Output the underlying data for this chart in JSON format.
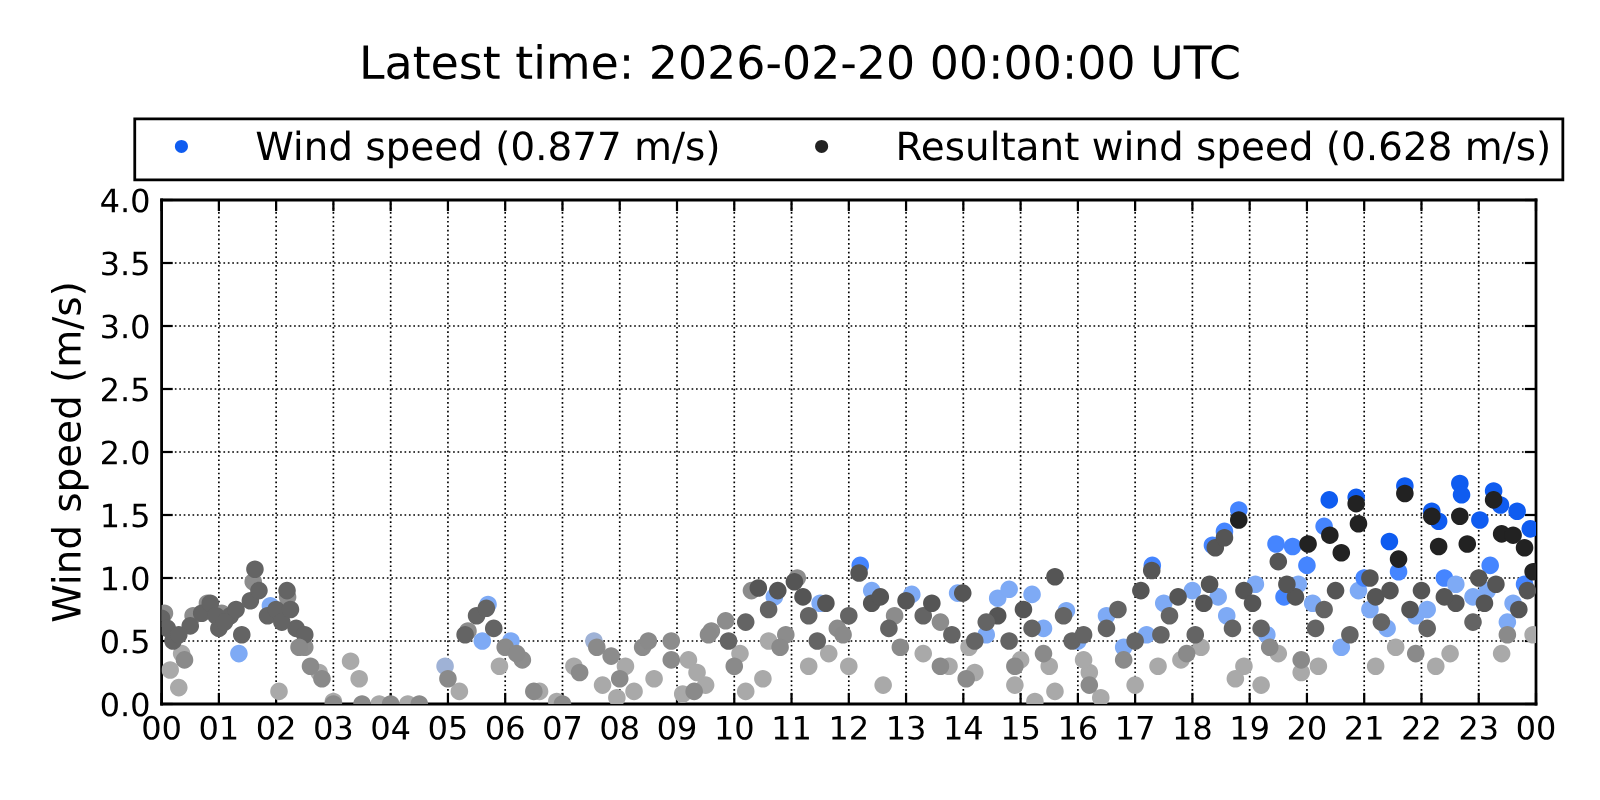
{
  "chart_data": {
    "type": "scatter",
    "title": "Latest time: 2026-02-20 00:00:00 UTC",
    "ylabel": "Wind speed (m/s)",
    "xlim": [
      0,
      24
    ],
    "xticks": [
      {
        "value": 0,
        "label": "00"
      },
      {
        "value": 1,
        "label": "01"
      },
      {
        "value": 2,
        "label": "02"
      },
      {
        "value": 3,
        "label": "03"
      },
      {
        "value": 4,
        "label": "04"
      },
      {
        "value": 5,
        "label": "05"
      },
      {
        "value": 6,
        "label": "06"
      },
      {
        "value": 7,
        "label": "07"
      },
      {
        "value": 8,
        "label": "08"
      },
      {
        "value": 9,
        "label": "09"
      },
      {
        "value": 10,
        "label": "10"
      },
      {
        "value": 11,
        "label": "11"
      },
      {
        "value": 12,
        "label": "12"
      },
      {
        "value": 13,
        "label": "13"
      },
      {
        "value": 14,
        "label": "14"
      },
      {
        "value": 15,
        "label": "15"
      },
      {
        "value": 16,
        "label": "16"
      },
      {
        "value": 17,
        "label": "17"
      },
      {
        "value": 18,
        "label": "18"
      },
      {
        "value": 19,
        "label": "19"
      },
      {
        "value": 20,
        "label": "20"
      },
      {
        "value": 21,
        "label": "21"
      },
      {
        "value": 22,
        "label": "22"
      },
      {
        "value": 23,
        "label": "23"
      },
      {
        "value": 24,
        "label": "00"
      }
    ],
    "ylim": [
      0,
      4
    ],
    "yticks": [
      {
        "value": 0,
        "label": "0.0"
      },
      {
        "value": 0.5,
        "label": "0.5"
      },
      {
        "value": 1,
        "label": "1.0"
      },
      {
        "value": 1.5,
        "label": "1.5"
      },
      {
        "value": 2,
        "label": "2.0"
      },
      {
        "value": 2.5,
        "label": "2.5"
      },
      {
        "value": 3,
        "label": "3.0"
      },
      {
        "value": 3.5,
        "label": "3.5"
      },
      {
        "value": 4,
        "label": "4.0"
      }
    ],
    "grid": true,
    "legend": "top",
    "marker": "circle",
    "series": [
      {
        "x": [
          0.05,
          0.15,
          0.3,
          0.35,
          0.55,
          0.8,
          1.05,
          1.35,
          1.6,
          1.9,
          2.05,
          2.2,
          2.5,
          2.75,
          3.0,
          3.3,
          3.45,
          3.8,
          4.3,
          4.95,
          5.2,
          5.35,
          5.6,
          5.7,
          5.9,
          6.1,
          6.3,
          6.6,
          6.9,
          7.2,
          7.55,
          7.7,
          7.85,
          8.1,
          8.4,
          8.6,
          8.9,
          9.1,
          9.2,
          9.5,
          9.6,
          9.85,
          10.1,
          10.3,
          10.5,
          10.7,
          10.9,
          11.1,
          11.3,
          11.5,
          11.8,
          12.2,
          12.4,
          12.6,
          12.8,
          13.1,
          13.3,
          13.6,
          13.9,
          14.2,
          14.4,
          14.6,
          14.8,
          15.0,
          15.2,
          15.25,
          15.4,
          15.6,
          15.8,
          16.0,
          16.2,
          16.4,
          16.5,
          16.8,
          17.0,
          17.2,
          17.3,
          17.5,
          17.8,
          18.0,
          18.35,
          18.56,
          18.6,
          18.81,
          18.9,
          19.1,
          19.2,
          19.3,
          19.46,
          19.6,
          19.75,
          19.9,
          20.0,
          20.1,
          20.3,
          20.6,
          20.9,
          21.0,
          21.2,
          21.4,
          21.6,
          21.9,
          22.1,
          22.4,
          22.5,
          22.9,
          23.2,
          23.5,
          23.6,
          23.8,
          23.95,
          7.95,
          8.25,
          9.35,
          10.2,
          10.6,
          11.65,
          12.0,
          13.75,
          14.1,
          14.9,
          15.5,
          16.1,
          17.4,
          18.15,
          18.75,
          19.5,
          20.2,
          21.55,
          22.25,
          23.4,
          18.45,
          19.85,
          21.1,
          22.6,
          23.15
        ],
        "values": [
          0.72,
          0.27,
          0.13,
          0.4,
          0.7,
          0.8,
          0.72,
          0.4,
          0.97,
          0.78,
          0.1,
          0.85,
          0.45,
          0.25,
          0.02,
          0.34,
          0.2,
          0.0,
          0.0,
          0.3,
          0.1,
          0.58,
          0.5,
          0.79,
          0.3,
          0.5,
          0.35,
          0.1,
          0.02,
          0.3,
          0.5,
          0.15,
          0.38,
          0.3,
          0.45,
          0.2,
          0.5,
          0.08,
          0.35,
          0.15,
          0.58,
          0.66,
          0.4,
          0.9,
          0.2,
          0.85,
          0.55,
          1.0,
          0.3,
          0.8,
          0.6,
          1.1,
          0.9,
          0.15,
          0.7,
          0.87,
          0.4,
          0.65,
          0.88,
          0.25,
          0.55,
          0.84,
          0.91,
          0.35,
          0.87,
          0.02,
          0.6,
          0.1,
          0.74,
          0.5,
          0.25,
          0.05,
          0.7,
          0.45,
          0.15,
          0.55,
          1.1,
          0.8,
          0.35,
          0.9,
          1.26,
          1.37,
          0.7,
          1.54,
          0.3,
          0.95,
          0.15,
          0.55,
          1.27,
          0.85,
          1.25,
          0.25,
          1.1,
          0.8,
          1.41,
          0.45,
          0.9,
          1.0,
          0.3,
          0.6,
          1.05,
          0.7,
          0.75,
          1.0,
          0.4,
          0.85,
          1.1,
          0.65,
          0.8,
          0.95,
          0.55,
          0.05,
          0.1,
          0.25,
          0.1,
          0.5,
          0.4,
          0.3,
          0.3,
          0.45,
          0.15,
          0.3,
          0.35,
          0.3,
          0.45,
          0.2,
          0.4,
          0.3,
          0.45,
          0.3,
          0.4,
          0.85,
          0.95,
          0.75,
          0.95,
          0.9
        ],
        "colors": [
          "#8c8c8c",
          "#a9a9a9",
          "#a9a9a9",
          "#a9a9a9",
          "#8c8c8c",
          "#8c8c8c",
          "#8c8c8c",
          "#7eaaf5",
          "#8c8c8c",
          "#7eaaf5",
          "#a9a9a9",
          "#8c8c8c",
          "#8c8c8c",
          "#a9a9a9",
          "#a9a9a9",
          "#a9a9a9",
          "#a9a9a9",
          "#a9a9a9",
          "#a9a9a9",
          "#9fb2d6",
          "#a9a9a9",
          "#8c8c8c",
          "#7eaaf5",
          "#7eaaf5",
          "#a9a9a9",
          "#7eaaf5",
          "#8c8c8c",
          "#a9a9a9",
          "#a9a9a9",
          "#a9a9a9",
          "#9fb2d6",
          "#a9a9a9",
          "#8c8c8c",
          "#a9a9a9",
          "#8c8c8c",
          "#a9a9a9",
          "#8c8c8c",
          "#a9a9a9",
          "#a9a9a9",
          "#a9a9a9",
          "#8c8c8c",
          "#8c8c8c",
          "#a9a9a9",
          "#8c8c8c",
          "#a9a9a9",
          "#7eaaf5",
          "#8c8c8c",
          "#8c8c8c",
          "#a9a9a9",
          "#7eaaf5",
          "#8c8c8c",
          "#4585ff",
          "#7eaaf5",
          "#a9a9a9",
          "#8c8c8c",
          "#7eaaf5",
          "#a9a9a9",
          "#8c8c8c",
          "#7eaaf5",
          "#a9a9a9",
          "#7eaaf5",
          "#7eaaf5",
          "#7eaaf5",
          "#a9a9a9",
          "#7eaaf5",
          "#a9a9a9",
          "#7eaaf5",
          "#a9a9a9",
          "#7eaaf5",
          "#7eaaf5",
          "#a9a9a9",
          "#a9a9a9",
          "#7eaaf5",
          "#7eaaf5",
          "#a9a9a9",
          "#7eaaf5",
          "#4585ff",
          "#7eaaf5",
          "#a9a9a9",
          "#7eaaf5",
          "#4585ff",
          "#4585ff",
          "#7eaaf5",
          "#4585ff",
          "#a9a9a9",
          "#7eaaf5",
          "#a9a9a9",
          "#7eaaf5",
          "#4585ff",
          "#4585ff",
          "#4585ff",
          "#a9a9a9",
          "#4585ff",
          "#7eaaf5",
          "#4585ff",
          "#7eaaf5",
          "#7eaaf5",
          "#4585ff",
          "#a9a9a9",
          "#7eaaf5",
          "#4585ff",
          "#7eaaf5",
          "#7eaaf5",
          "#4585ff",
          "#a9a9a9",
          "#7eaaf5",
          "#4585ff",
          "#7eaaf5",
          "#7eaaf5",
          "#4585ff",
          "#a9a9a9",
          "#a9a9a9",
          "#a9a9a9",
          "#a9a9a9",
          "#a9a9a9",
          "#a9a9a9",
          "#a9a9a9",
          "#a9a9a9",
          "#a9a9a9",
          "#a9a9a9",
          "#a9a9a9",
          "#a9a9a9",
          "#a9a9a9",
          "#a9a9a9",
          "#a9a9a9",
          "#a9a9a9",
          "#a9a9a9",
          "#a9a9a9",
          "#a9a9a9",
          "#a9a9a9",
          "#a9a9a9",
          "#7eaaf5",
          "#7eaaf5",
          "#7eaaf5",
          "#7eaaf5",
          "#7eaaf5"
        ]
      },
      {
        "name": "Wind speed (0.877 m/s)",
        "color": "#0f5cf0",
        "x": [
          20.39,
          20.86,
          21.44,
          21.71,
          22.18,
          22.3,
          22.67,
          22.7,
          23.02,
          23.26,
          23.38,
          23.67,
          23.9
        ],
        "values": [
          1.62,
          1.64,
          1.29,
          1.73,
          1.53,
          1.45,
          1.75,
          1.66,
          1.46,
          1.69,
          1.58,
          1.53,
          1.39
        ]
      },
      {
        "x": [
          0.0,
          0.2,
          0.4,
          0.5,
          0.7,
          0.85,
          1.0,
          1.2,
          1.4,
          1.55,
          1.63,
          1.7,
          1.85,
          2.0,
          2.19,
          2.35,
          2.5,
          2.6,
          2.8,
          3.0,
          3.5,
          4.0,
          4.5,
          5.0,
          5.3,
          5.5,
          5.67,
          5.8,
          6.0,
          6.2,
          6.5,
          7.0,
          7.3,
          7.6,
          8.0,
          8.5,
          8.9,
          9.3,
          9.55,
          9.9,
          10.2,
          10.42,
          10.6,
          10.76,
          11.05,
          11.3,
          11.6,
          11.9,
          12.18,
          12.4,
          12.7,
          13.0,
          13.3,
          13.6,
          13.99,
          14.2,
          14.6,
          14.9,
          15.2,
          15.6,
          15.9,
          16.2,
          16.5,
          16.8,
          17.1,
          17.29,
          17.6,
          17.9,
          18.2,
          18.4,
          18.56,
          18.9,
          19.2,
          19.5,
          19.8,
          19.9,
          20.3,
          21.1,
          21.3,
          21.9,
          22.0,
          22.6,
          23.0,
          23.5,
          10.0,
          10.8,
          11.2,
          11.45,
          12.0,
          12.55,
          12.9,
          13.45,
          13.8,
          14.05,
          14.4,
          14.8,
          15.05,
          15.4,
          15.75,
          16.1,
          16.7,
          17.0,
          17.45,
          17.75,
          18.05,
          18.3,
          18.7,
          19.05,
          19.35,
          19.65,
          20.15,
          20.5,
          20.75,
          21.2,
          21.45,
          21.8,
          22.1,
          22.4,
          22.9,
          23.1,
          23.3,
          23.7,
          23.85,
          0.1,
          0.3,
          0.95,
          1.1,
          1.3,
          2.1,
          2.25,
          2.4
        ],
        "values": [
          0.68,
          0.5,
          0.35,
          0.62,
          0.72,
          0.8,
          0.6,
          0.7,
          0.55,
          0.82,
          1.07,
          0.9,
          0.7,
          0.75,
          0.9,
          0.6,
          0.55,
          0.3,
          0.2,
          0.0,
          0.0,
          0.0,
          0.0,
          0.2,
          0.55,
          0.7,
          0.76,
          0.6,
          0.45,
          0.4,
          0.1,
          0.0,
          0.25,
          0.45,
          0.2,
          0.5,
          0.35,
          0.1,
          0.55,
          0.5,
          0.65,
          0.92,
          0.75,
          0.9,
          0.97,
          0.7,
          0.8,
          0.55,
          1.04,
          0.8,
          0.6,
          0.82,
          0.7,
          0.3,
          0.88,
          0.5,
          0.7,
          0.3,
          0.6,
          1.01,
          0.5,
          0.15,
          0.6,
          0.35,
          0.9,
          1.06,
          0.7,
          0.4,
          0.8,
          1.24,
          1.32,
          0.9,
          0.6,
          1.13,
          0.85,
          0.35,
          0.75,
          1.0,
          0.65,
          0.4,
          0.9,
          0.8,
          1.0,
          0.55,
          0.3,
          0.45,
          0.85,
          0.5,
          0.7,
          0.85,
          0.45,
          0.8,
          0.55,
          0.2,
          0.65,
          0.5,
          0.75,
          0.4,
          0.7,
          0.55,
          0.75,
          0.5,
          0.55,
          0.85,
          0.55,
          0.95,
          0.6,
          0.8,
          0.45,
          0.95,
          0.6,
          0.9,
          0.55,
          0.85,
          0.9,
          0.75,
          0.6,
          0.85,
          0.65,
          0.8,
          0.95,
          0.75,
          0.9,
          0.6,
          0.55,
          0.7,
          0.65,
          0.75,
          0.65,
          0.75,
          0.45
        ],
        "colors": [
          "#646464",
          "#646464",
          "#8a8a8a",
          "#646464",
          "#646464",
          "#646464",
          "#646464",
          "#646464",
          "#646464",
          "#646464",
          "#646464",
          "#646464",
          "#646464",
          "#646464",
          "#646464",
          "#646464",
          "#646464",
          "#8a8a8a",
          "#8a8a8a",
          "#8a8a8a",
          "#8a8a8a",
          "#8a8a8a",
          "#8a8a8a",
          "#8a8a8a",
          "#646464",
          "#646464",
          "#646464",
          "#646464",
          "#8a8a8a",
          "#8a8a8a",
          "#8a8a8a",
          "#8a8a8a",
          "#8a8a8a",
          "#8a8a8a",
          "#8a8a8a",
          "#8a8a8a",
          "#8a8a8a",
          "#8a8a8a",
          "#8a8a8a",
          "#646464",
          "#646464",
          "#555555",
          "#646464",
          "#555555",
          "#555555",
          "#646464",
          "#555555",
          "#8a8a8a",
          "#555555",
          "#555555",
          "#646464",
          "#555555",
          "#646464",
          "#8a8a8a",
          "#555555",
          "#646464",
          "#555555",
          "#8a8a8a",
          "#646464",
          "#555555",
          "#646464",
          "#8a8a8a",
          "#646464",
          "#8a8a8a",
          "#555555",
          "#555555",
          "#646464",
          "#8a8a8a",
          "#555555",
          "#555555",
          "#555555",
          "#555555",
          "#646464",
          "#555555",
          "#555555",
          "#8a8a8a",
          "#646464",
          "#555555",
          "#646464",
          "#8a8a8a",
          "#555555",
          "#555555",
          "#555555",
          "#8a8a8a",
          "#8a8a8a",
          "#8a8a8a",
          "#555555",
          "#646464",
          "#646464",
          "#555555",
          "#8a8a8a",
          "#555555",
          "#646464",
          "#8a8a8a",
          "#646464",
          "#646464",
          "#555555",
          "#8a8a8a",
          "#646464",
          "#646464",
          "#646464",
          "#646464",
          "#646464",
          "#555555",
          "#646464",
          "#555555",
          "#646464",
          "#555555",
          "#8a8a8a",
          "#555555",
          "#646464",
          "#555555",
          "#646464",
          "#555555",
          "#555555",
          "#555555",
          "#646464",
          "#555555",
          "#646464",
          "#555555",
          "#555555",
          "#555555",
          "#555555",
          "#646464",
          "#646464",
          "#646464",
          "#646464",
          "#646464",
          "#646464",
          "#646464",
          "#8a8a8a"
        ]
      },
      {
        "name": "Resultant wind speed (0.628 m/s)",
        "color": "#222222",
        "x": [
          18.81,
          20.02,
          20.4,
          20.6,
          20.86,
          20.9,
          21.6,
          21.71,
          22.18,
          22.3,
          22.67,
          22.8,
          23.26,
          23.4,
          23.6,
          23.8,
          23.95
        ],
        "values": [
          1.46,
          1.27,
          1.34,
          1.2,
          1.59,
          1.43,
          1.15,
          1.67,
          1.49,
          1.25,
          1.49,
          1.27,
          1.62,
          1.35,
          1.34,
          1.24,
          1.05
        ]
      }
    ]
  }
}
